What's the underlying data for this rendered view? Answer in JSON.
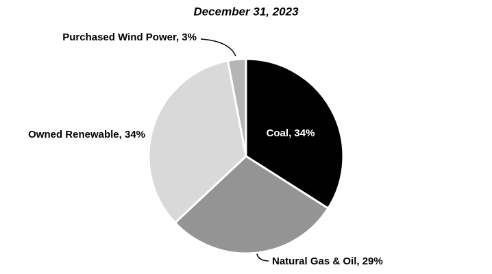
{
  "chart_data": {
    "type": "pie",
    "title": "December 31, 2023",
    "values": [
      34,
      29,
      34,
      3
    ],
    "value_labels": [
      "Coal, 34%",
      "Natural Gas & Oil, 29%",
      "Owned Renewable, 34%",
      "Purchased Wind Power, 3%"
    ],
    "colors": [
      "#000000",
      "#949494",
      "#d9d9d9",
      "#b5b5b5"
    ]
  }
}
